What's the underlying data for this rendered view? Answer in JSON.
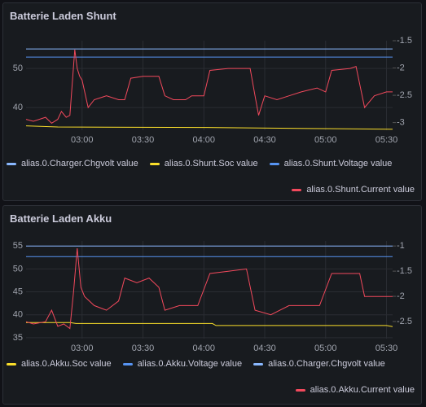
{
  "chart_data": [
    {
      "type": "line",
      "title": "Batterie Laden Shunt",
      "grid": true,
      "xlim": [
        2.54,
        5.55
      ],
      "xticks": [
        {
          "value": 3,
          "label": "03:00"
        },
        {
          "value": 3.5,
          "label": "03:30"
        },
        {
          "value": 4,
          "label": "04:00"
        },
        {
          "value": 4.5,
          "label": "04:30"
        },
        {
          "value": 5,
          "label": "05:00"
        },
        {
          "value": 5.5,
          "label": "05:30"
        }
      ],
      "ylim": [
        34.2,
        57.1
      ],
      "yticks": [
        40,
        50
      ],
      "y2lim": [
        -3.14,
        -1.5
      ],
      "y2ticks": [
        -1.5,
        -2,
        -2.5,
        -3
      ],
      "series": [
        {
          "name": "alias.0.Charger.Chgvolt value",
          "color": "#8ab8ff",
          "axis": "y2",
          "x": [
            2.54,
            5.55
          ],
          "values": [
            -1.65,
            -1.65
          ]
        },
        {
          "name": "alias.0.Shunt.Soc value",
          "color": "#fade2a",
          "axis": "y2",
          "x": [
            2.54,
            2.8,
            4.0,
            5.0,
            5.55
          ],
          "values": [
            -3.06,
            -3.08,
            -3.09,
            -3.11,
            -3.12
          ]
        },
        {
          "name": "alias.0.Shunt.Voltage value",
          "color": "#5794f2",
          "axis": "y2",
          "x": [
            2.54,
            5.55
          ],
          "values": [
            -1.8,
            -1.8
          ]
        },
        {
          "name": "alias.0.Shunt.Current value",
          "color": "#f2495c",
          "axis": "y",
          "x": [
            2.54,
            2.6,
            2.7,
            2.75,
            2.8,
            2.83,
            2.87,
            2.9,
            2.94,
            2.96,
            2.98,
            3.0,
            3.05,
            3.1,
            3.2,
            3.3,
            3.35,
            3.4,
            3.5,
            3.63,
            3.68,
            3.75,
            3.85,
            3.9,
            4.0,
            4.05,
            4.2,
            4.38,
            4.42,
            4.45,
            4.5,
            4.6,
            4.7,
            4.8,
            4.93,
            5.0,
            5.05,
            5.2,
            5.25,
            5.32,
            5.4,
            5.5,
            5.55
          ],
          "values": [
            37,
            36.5,
            37.5,
            36,
            37,
            39,
            37.5,
            38,
            54.8,
            50,
            48,
            47,
            40,
            42,
            43,
            42,
            42,
            47.5,
            48,
            48,
            43,
            42,
            42,
            43,
            43,
            49.5,
            50,
            50,
            43,
            38,
            43,
            42,
            43,
            44,
            45,
            44,
            49.5,
            50,
            50.5,
            40,
            43,
            44,
            44
          ]
        }
      ]
    },
    {
      "type": "line",
      "title": "Batterie Laden Akku",
      "grid": true,
      "xlim": [
        2.54,
        5.55
      ],
      "xticks": [
        {
          "value": 3,
          "label": "03:00"
        },
        {
          "value": 3.5,
          "label": "03:30"
        },
        {
          "value": 4,
          "label": "04:00"
        },
        {
          "value": 4.5,
          "label": "04:30"
        },
        {
          "value": 5,
          "label": "05:00"
        },
        {
          "value": 5.5,
          "label": "05:30"
        }
      ],
      "ylim": [
        34.8,
        56.1
      ],
      "yticks": [
        35,
        40,
        45,
        50,
        55
      ],
      "y2lim": [
        -2.84,
        -0.9
      ],
      "y2ticks": [
        -1,
        -1.5,
        -2,
        -2.5
      ],
      "series": [
        {
          "name": "alias.0.Akku.Soc value",
          "color": "#fade2a",
          "axis": "y2",
          "x": [
            2.54,
            2.9,
            2.95,
            4.07,
            4.1,
            5.5,
            5.55
          ],
          "values": [
            -2.52,
            -2.52,
            -2.54,
            -2.54,
            -2.58,
            -2.58,
            -2.6
          ]
        },
        {
          "name": "alias.0.Akku.Voltage value",
          "color": "#5794f2",
          "axis": "y2",
          "x": [
            2.54,
            5.55
          ],
          "values": [
            -1.21,
            -1.21
          ]
        },
        {
          "name": "alias.0.Charger.Chgvolt value",
          "color": "#8ab8ff",
          "axis": "y2",
          "x": [
            2.54,
            5.55
          ],
          "values": [
            -1.0,
            -1.0
          ]
        },
        {
          "name": "alias.0.Akku.Current value",
          "color": "#f2495c",
          "axis": "y",
          "x": [
            2.54,
            2.6,
            2.7,
            2.75,
            2.8,
            2.85,
            2.9,
            2.93,
            2.96,
            2.99,
            3.02,
            3.1,
            3.2,
            3.3,
            3.35,
            3.45,
            3.55,
            3.63,
            3.68,
            3.8,
            3.95,
            4.05,
            4.2,
            4.35,
            4.42,
            4.55,
            4.7,
            4.85,
            4.95,
            5.05,
            5.2,
            5.28,
            5.32,
            5.45,
            5.55
          ],
          "values": [
            38.5,
            38,
            38.5,
            41,
            37.5,
            38,
            37,
            45,
            54.5,
            46,
            44,
            42,
            41,
            43,
            48,
            47,
            48,
            46,
            41,
            42,
            42,
            49,
            49.5,
            50,
            41,
            40,
            42,
            42,
            42,
            49,
            49,
            49,
            44,
            44,
            44
          ]
        }
      ]
    }
  ]
}
